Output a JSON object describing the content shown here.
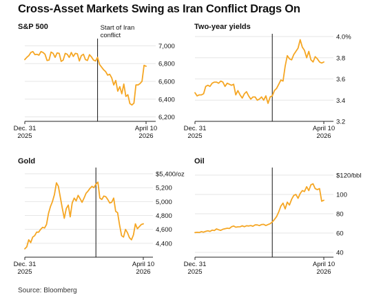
{
  "title": "Cross-Asset Markets Swing as Iran Conflict Drags On",
  "source": "Source: Bloomberg",
  "colors": {
    "line": "#f5a623",
    "event_line": "#111111",
    "grid": "#e6e6e6",
    "axis": "#222222",
    "text": "#111111"
  },
  "chart_data": [
    {
      "id": "sp500",
      "type": "line",
      "title": "S&P 500",
      "unit_label": "",
      "ylim": [
        6150,
        7050
      ],
      "yticks": [
        6200,
        6400,
        6600,
        6800,
        7000
      ],
      "ytick_labels": [
        "6,200",
        "6,400",
        "6,600",
        "6,800",
        "7,000"
      ],
      "grid": true,
      "x_tick_labels": [
        {
          "line1": "Dec. 31",
          "line2": "2025"
        },
        {
          "line1": "April 10",
          "line2": "2026"
        }
      ],
      "annotation": {
        "lines": [
          "Start of Iran",
          "conflict"
        ]
      },
      "event_index": 36,
      "series": [
        {
          "values": [
            6845,
            6870,
            6890,
            6925,
            6935,
            6900,
            6905,
            6895,
            6935,
            6925,
            6905,
            6835,
            6840,
            6930,
            6915,
            6870,
            6920,
            6915,
            6825,
            6840,
            6915,
            6905,
            6870,
            6925,
            6880,
            6915,
            6910,
            6830,
            6890,
            6905,
            6845,
            6835,
            6900,
            6875,
            6840,
            6830,
            6870,
            6790,
            6760,
            6730,
            6710,
            6670,
            6680,
            6640,
            6560,
            6610,
            6490,
            6540,
            6460,
            6570,
            6430,
            6450,
            6350,
            6335,
            6355,
            6560,
            6560,
            6575,
            6600,
            6780,
            6770
          ]
        }
      ]
    },
    {
      "id": "yields",
      "type": "line",
      "title": "Two-year yields",
      "unit_label": "4.0%",
      "ylim": [
        3.2,
        4.0
      ],
      "yticks": [
        3.2,
        3.4,
        3.6,
        3.8,
        4.0
      ],
      "ytick_labels": [
        "3.2",
        "3.4",
        "3.6",
        "3.8",
        "4.0%"
      ],
      "grid": true,
      "x_tick_labels": [
        {
          "line1": "Dec. 31",
          "line2": "2025"
        },
        {
          "line1": "April 10",
          "line2": "2026"
        }
      ],
      "event_index": 36,
      "series": [
        {
          "values": [
            3.47,
            3.44,
            3.45,
            3.45,
            3.46,
            3.53,
            3.54,
            3.53,
            3.56,
            3.57,
            3.57,
            3.56,
            3.58,
            3.57,
            3.53,
            3.56,
            3.55,
            3.54,
            3.55,
            3.45,
            3.49,
            3.45,
            3.42,
            3.46,
            3.48,
            3.44,
            3.41,
            3.43,
            3.43,
            3.4,
            3.41,
            3.43,
            3.4,
            3.44,
            3.37,
            3.43,
            3.44,
            3.49,
            3.51,
            3.55,
            3.59,
            3.58,
            3.72,
            3.82,
            3.79,
            3.78,
            3.83,
            3.86,
            3.89,
            3.97,
            3.9,
            3.87,
            3.8,
            3.86,
            3.78,
            3.76,
            3.81,
            3.79,
            3.76,
            3.75,
            3.76
          ]
        }
      ]
    },
    {
      "id": "gold",
      "type": "line",
      "title": "Gold",
      "unit_label": "$5,400/oz",
      "ylim": [
        4200,
        5450
      ],
      "yticks": [
        4400,
        4600,
        4800,
        5000,
        5200,
        5400
      ],
      "ytick_labels": [
        "4,400",
        "4,600",
        "4,800",
        "5,000",
        "5,200",
        "$5,400/oz"
      ],
      "grid": true,
      "x_tick_labels": [
        {
          "line1": "Dec. 31",
          "line2": "2025"
        },
        {
          "line1": "April 10",
          "line2": "2026"
        }
      ],
      "event_index": 36,
      "series": [
        {
          "values": [
            4320,
            4350,
            4450,
            4410,
            4490,
            4510,
            4560,
            4560,
            4600,
            4630,
            4620,
            4670,
            4830,
            4930,
            5000,
            5100,
            5270,
            5220,
            5060,
            4900,
            4760,
            4900,
            4950,
            4780,
            4980,
            5050,
            5010,
            5090,
            5040,
            4990,
            5050,
            5120,
            5150,
            5190,
            5220,
            5200,
            5250,
            5280,
            5050,
            5030,
            5080,
            5070,
            5030,
            4980,
            4990,
            5050,
            4860,
            4840,
            4660,
            4510,
            4490,
            4600,
            4550,
            4480,
            4450,
            4520,
            4680,
            4610,
            4640,
            4670,
            4680
          ]
        }
      ]
    },
    {
      "id": "oil",
      "type": "line",
      "title": "Oil",
      "unit_label": "$120/bbl",
      "ylim": [
        35,
        125
      ],
      "yticks": [
        40,
        60,
        80,
        100,
        120
      ],
      "ytick_labels": [
        "40",
        "60",
        "80",
        "100",
        "$120/bbl"
      ],
      "grid": true,
      "x_tick_labels": [
        {
          "line1": "Dec. 31",
          "line2": "2025"
        },
        {
          "line1": "April 10",
          "line2": "2026"
        }
      ],
      "event_index": 36,
      "series": [
        {
          "values": [
            60.5,
            60.8,
            60.6,
            61.4,
            60.9,
            61.8,
            62.3,
            61.7,
            63.0,
            62.6,
            64.3,
            63.4,
            62.8,
            63.9,
            64.5,
            65.0,
            64.7,
            66.5,
            67.3,
            66.1,
            66.4,
            66.5,
            67.5,
            66.6,
            67.6,
            67.3,
            67.8,
            67.1,
            68.5,
            68.4,
            67.7,
            68.8,
            69.0,
            67.8,
            68.8,
            69.7,
            71.5,
            74.0,
            77.0,
            82.0,
            88.0,
            91.0,
            85.0,
            92.0,
            89.0,
            95.0,
            99.0,
            100.0,
            96.0,
            101.0,
            104.0,
            103.0,
            108.0,
            104.0,
            110.0,
            111.0,
            106.0,
            105.0,
            106.0,
            93.0,
            94.0
          ]
        }
      ]
    }
  ]
}
